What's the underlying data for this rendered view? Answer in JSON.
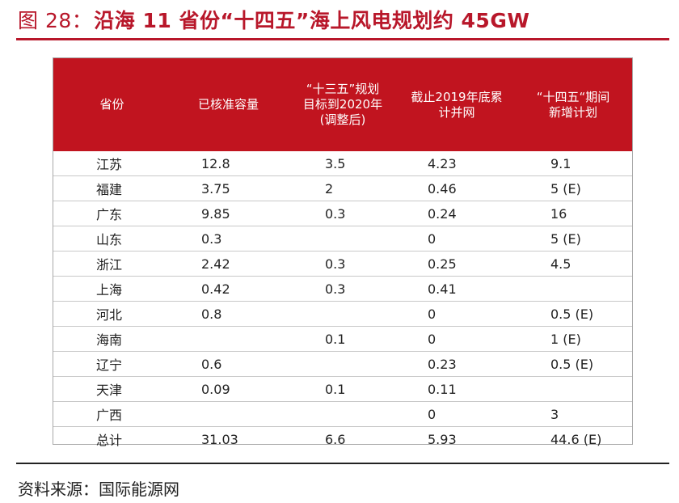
{
  "figure": {
    "label": "图 28：",
    "title": "沿海 11 省份“十四五”海上风电规划约 45GW"
  },
  "table": {
    "headers": [
      [
        "省份"
      ],
      [
        "已核准容量"
      ],
      [
        "“十三五”规划",
        "目标到2020年",
        "(调整后)"
      ],
      [
        "截止2019年底累",
        "计并网"
      ],
      [
        "“十四五“期间",
        "新增计划"
      ]
    ],
    "rows": [
      [
        "江苏",
        "12.8",
        "3.5",
        "4.23",
        "9.1"
      ],
      [
        "福建",
        "3.75",
        "2",
        "0.46",
        "5 (E)"
      ],
      [
        "广东",
        "9.85",
        "0.3",
        "0.24",
        "16"
      ],
      [
        "山东",
        "0.3",
        "",
        "0",
        "5 (E)"
      ],
      [
        "浙江",
        "2.42",
        "0.3",
        "0.25",
        "4.5"
      ],
      [
        "上海",
        "0.42",
        "0.3",
        "0.41",
        ""
      ],
      [
        "河北",
        "0.8",
        "",
        "0",
        "0.5 (E)"
      ],
      [
        "海南",
        "",
        "0.1",
        "0",
        "1 (E)"
      ],
      [
        "辽宁",
        "0.6",
        "",
        "0.23",
        "0.5 (E)"
      ],
      [
        "天津",
        "0.09",
        "0.1",
        "0.11",
        ""
      ],
      [
        "广西",
        "",
        "",
        "0",
        "3"
      ],
      [
        "总计",
        "31.03",
        "6.6",
        "5.93",
        "44.6 (E)"
      ]
    ]
  },
  "source": "资料来源：国际能源网",
  "colors": {
    "accent": "#b8172a",
    "header_bg": "#c1141f"
  }
}
